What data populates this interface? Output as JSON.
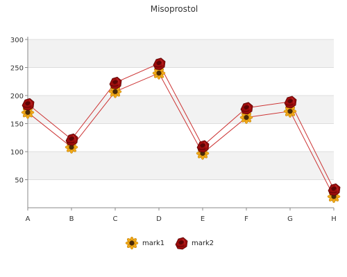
{
  "chart_data": {
    "type": "line",
    "title": "Misoprostol",
    "xlabel": "",
    "ylabel": "",
    "categories": [
      "A",
      "B",
      "C",
      "D",
      "E",
      "F",
      "G",
      "H"
    ],
    "ylim": [
      0,
      300
    ],
    "yticks": [
      50,
      100,
      150,
      200,
      250,
      300
    ],
    "grid": "horizontal bands",
    "legend_position": "bottom",
    "series": [
      {
        "name": "mark1",
        "marker": "sunflower-icon",
        "values": [
          170,
          108,
          207,
          240,
          97,
          161,
          172,
          20
        ]
      },
      {
        "name": "mark2",
        "marker": "rose-icon",
        "values": [
          185,
          122,
          223,
          257,
          110,
          178,
          189,
          33
        ]
      }
    ],
    "colors": {
      "line": "#cc3333",
      "band": "#f2f2f2",
      "grid": "#dddddd",
      "axis": "#888888",
      "sunflower_petal": "#f0a818",
      "sunflower_center": "#4a2a08",
      "rose": "#9b0c0c",
      "rose_dark": "#5c0505"
    }
  }
}
